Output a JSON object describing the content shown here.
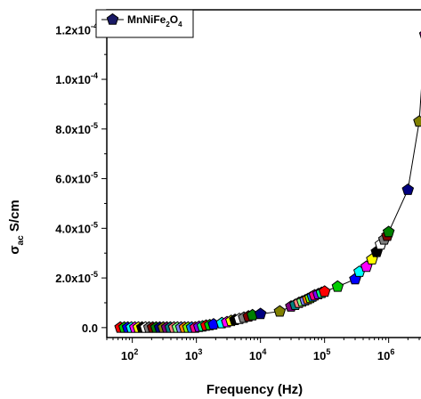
{
  "chart_data": {
    "type": "scatter",
    "xlabel": "Frequency (Hz)",
    "ylabel_main": "σ",
    "ylabel_sub": "ac",
    "ylabel_rest": " S/cm",
    "xscale": "log",
    "xlim": [
      40,
      4000000
    ],
    "ylim": [
      -4e-06,
      0.000128
    ],
    "x_tick_labels": [
      {
        "value": 100,
        "base": "10",
        "exp": "2"
      },
      {
        "value": 1000,
        "base": "10",
        "exp": "3"
      },
      {
        "value": 10000,
        "base": "10",
        "exp": "4"
      },
      {
        "value": 100000,
        "base": "10",
        "exp": "5"
      },
      {
        "value": 1000000,
        "base": "10",
        "exp": "6"
      }
    ],
    "y_tick_labels": [
      {
        "value": 0,
        "text": "0.0",
        "exp": ""
      },
      {
        "value": 2e-05,
        "text": "2.0x10",
        "exp": "-5"
      },
      {
        "value": 4e-05,
        "text": "4.0x10",
        "exp": "-5"
      },
      {
        "value": 6e-05,
        "text": "6.0x10",
        "exp": "-5"
      },
      {
        "value": 8e-05,
        "text": "8.0x10",
        "exp": "-5"
      },
      {
        "value": 0.0001,
        "text": "1.0x10",
        "exp": "-4"
      },
      {
        "value": 0.00012,
        "text": "1.2x10",
        "exp": "-4"
      }
    ],
    "legend": {
      "position": "top-left",
      "name_parts": [
        "MnNiFe",
        "2",
        "O",
        "4"
      ]
    },
    "line_color": "#000000",
    "marker": "pentagon",
    "point_colors": [
      "#ff0000",
      "#00cc00",
      "#0000ff",
      "#00ffff",
      "#ff00ff",
      "#ffff00",
      "#000000",
      "#ffffff",
      "#808080",
      "#800000",
      "#008000",
      "#000080",
      "#808000",
      "#800080",
      "#008080",
      "#ff8080",
      "#80ff80",
      "#8080ff",
      "#ff8000",
      "#80ff00",
      "#0080ff",
      "#ff0080",
      "#8000ff",
      "#00ff80"
    ],
    "series": [
      {
        "points": [
          [
            65,
            0
          ],
          [
            75,
            0
          ],
          [
            85,
            0
          ],
          [
            97,
            0
          ],
          [
            110,
            0
          ],
          [
            125,
            0
          ],
          [
            142,
            0
          ],
          [
            161,
            0
          ],
          [
            183,
            0
          ],
          [
            208,
            0
          ],
          [
            236,
            0
          ],
          [
            268,
            0
          ],
          [
            305,
            0
          ],
          [
            346,
            0
          ],
          [
            393,
            0
          ],
          [
            447,
            0
          ],
          [
            507,
            0
          ],
          [
            577,
            0
          ],
          [
            655,
            0
          ],
          [
            745,
            0
          ],
          [
            846,
            0
          ],
          [
            962,
            0
          ],
          [
            1100,
            3e-07
          ],
          [
            1250,
            5e-07
          ],
          [
            1420,
            8e-07
          ],
          [
            1620,
            1e-06
          ],
          [
            1850,
            1.3e-06
          ],
          [
            2500,
            1.8e-06
          ],
          [
            3000,
            2.2e-06
          ],
          [
            3500,
            2.7e-06
          ],
          [
            4000,
            3.1e-06
          ],
          [
            4700,
            3.5e-06
          ],
          [
            5500,
            4e-06
          ],
          [
            6500,
            4.5e-06
          ],
          [
            7500,
            5e-06
          ],
          [
            10000,
            5.5e-06
          ],
          [
            20000,
            6.5e-06
          ],
          [
            30000,
            8.5e-06
          ],
          [
            35000,
            9.2e-06
          ],
          [
            40000,
            1e-05
          ],
          [
            45000,
            1.05e-05
          ],
          [
            50000,
            1.1e-05
          ],
          [
            55000,
            1.15e-05
          ],
          [
            60000,
            1.2e-05
          ],
          [
            65000,
            1.25e-05
          ],
          [
            70000,
            1.3e-05
          ],
          [
            80000,
            1.35e-05
          ],
          [
            90000,
            1.4e-05
          ],
          [
            100000,
            1.45e-05
          ],
          [
            160000,
            1.65e-05
          ],
          [
            300000,
            1.95e-05
          ],
          [
            350000,
            2.25e-05
          ],
          [
            450000,
            2.45e-05
          ],
          [
            550000,
            2.75e-05
          ],
          [
            650000,
            3.05e-05
          ],
          [
            750000,
            3.35e-05
          ],
          [
            850000,
            3.55e-05
          ],
          [
            950000,
            3.7e-05
          ],
          [
            1000000,
            3.85e-05
          ],
          [
            2000000,
            5.55e-05
          ],
          [
            3000000,
            8.3e-05
          ],
          [
            3700000,
            0.000118
          ]
        ]
      }
    ]
  }
}
